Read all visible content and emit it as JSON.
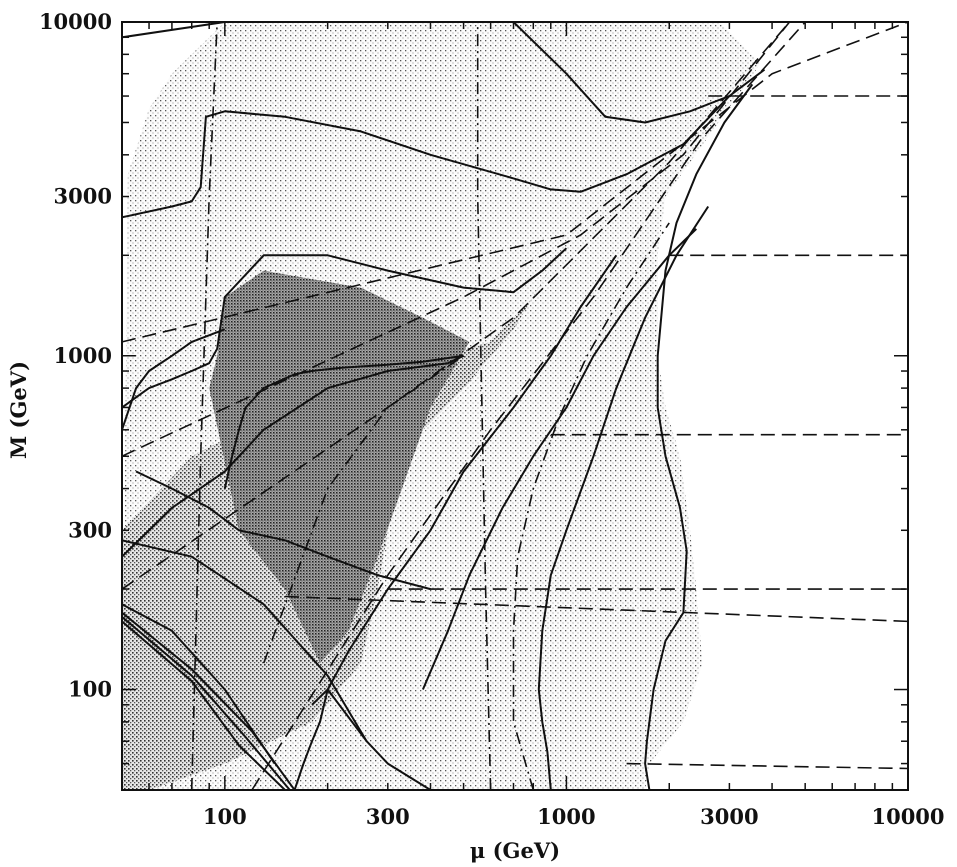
{
  "chart_data": {
    "type": "line",
    "xlabel": "μ (GeV)",
    "ylabel": "M (GeV)",
    "xscale": "log",
    "yscale": "log",
    "xlim": [
      50,
      10000
    ],
    "ylim": [
      50,
      10000
    ],
    "xticks": [
      100,
      300,
      1000,
      3000,
      10000
    ],
    "xtick_labels": [
      "100",
      "300",
      "1000",
      "3000",
      "10000"
    ],
    "yticks": [
      100,
      300,
      1000,
      3000,
      10000
    ],
    "ytick_labels": [
      "100",
      "300",
      "1000",
      "3000",
      "10000"
    ],
    "grid": false,
    "legend": "none",
    "regions": [
      {
        "shade": "light",
        "x": [
          50,
          52,
          60,
          70,
          80,
          90,
          100,
          130,
          200,
          400,
          800,
          1000,
          1200,
          1700,
          2100,
          2800,
          3700,
          1950,
          1850,
          1850,
          1950,
          2150,
          2300,
          2400,
          2500,
          2200,
          1750,
          1700,
          50
        ],
        "y": [
          50,
          3500,
          5500,
          7000,
          8000,
          9000,
          10000,
          10000,
          10000,
          10000,
          10000,
          10000,
          10000,
          10000,
          10000,
          10000,
          7500,
          3000,
          2000,
          1000,
          700,
          500,
          300,
          200,
          120,
          80,
          60,
          50,
          50
        ]
      },
      {
        "shade": "medium",
        "x": [
          50,
          80,
          150,
          300,
          600,
          800,
          1000,
          700,
          500,
          320,
          300,
          280,
          250,
          180,
          100,
          60,
          50
        ],
        "y": [
          300,
          500,
          700,
          900,
          1100,
          1500,
          2200,
          1200,
          800,
          500,
          300,
          200,
          120,
          80,
          60,
          50,
          50
        ]
      },
      {
        "shade": "dark",
        "x": [
          90,
          95,
          100,
          130,
          250,
          380,
          520,
          400,
          330,
          280,
          230,
          190,
          150,
          110,
          90
        ],
        "y": [
          800,
          1000,
          1500,
          1800,
          1600,
          1300,
          1100,
          700,
          400,
          250,
          150,
          120,
          200,
          300,
          800
        ]
      }
    ],
    "series": [
      {
        "style": "solid",
        "x": [
          50,
          100,
          200,
          400,
          700,
          1000,
          1300,
          1700,
          2300,
          3000
        ],
        "y": [
          9000,
          10000,
          10000,
          10000,
          10000,
          7000,
          5200,
          5000,
          5400,
          6000
        ]
      },
      {
        "style": "solid",
        "x": [
          50,
          70,
          80,
          85,
          88,
          100,
          150,
          250,
          400,
          700,
          900,
          1100,
          1500,
          2200,
          3000,
          3800
        ],
        "y": [
          2600,
          2800,
          2900,
          3200,
          5200,
          5400,
          5200,
          4700,
          4000,
          3400,
          3150,
          3100,
          3500,
          4300,
          6000,
          7200
        ]
      },
      {
        "style": "solid",
        "x": [
          50,
          60,
          70,
          80,
          90,
          95,
          100,
          130,
          200,
          300,
          500,
          700,
          850,
          1000
        ],
        "y": [
          700,
          800,
          850,
          900,
          950,
          1050,
          1500,
          2000,
          2000,
          1800,
          1600,
          1550,
          1800,
          2100
        ]
      },
      {
        "style": "solid",
        "x": [
          50,
          55,
          60,
          70,
          80,
          100
        ],
        "y": [
          600,
          800,
          900,
          1000,
          1100,
          1200
        ]
      },
      {
        "style": "solid",
        "x": [
          50,
          70,
          100,
          130,
          200,
          300,
          450,
          500
        ],
        "y": [
          250,
          350,
          450,
          600,
          800,
          900,
          950,
          1000
        ]
      },
      {
        "style": "solid",
        "x": [
          100,
          105,
          110,
          115,
          130,
          160,
          180,
          220,
          300,
          380,
          500
        ],
        "y": [
          400,
          500,
          600,
          700,
          800,
          880,
          900,
          920,
          940,
          960,
          1000
        ]
      },
      {
        "style": "solid",
        "x": [
          380,
          450,
          520,
          650,
          800,
          1000,
          1200,
          1500,
          2000,
          2400
        ],
        "y": [
          100,
          150,
          220,
          350,
          500,
          700,
          1000,
          1400,
          2000,
          2400
        ]
      },
      {
        "style": "solid",
        "x": [
          900,
          880,
          850,
          830,
          850,
          900,
          1000,
          1200,
          1400,
          1700,
          2100,
          2600
        ],
        "y": [
          50,
          65,
          80,
          100,
          150,
          220,
          300,
          500,
          800,
          1300,
          2000,
          2800
        ]
      },
      {
        "style": "solid",
        "x": [
          1750,
          1700,
          1720,
          1800,
          1950,
          2200,
          2250,
          2150,
          1950,
          1850,
          1850,
          1950,
          2100,
          2400,
          2900,
          3500
        ],
        "y": [
          50,
          60,
          70,
          100,
          140,
          170,
          260,
          350,
          500,
          700,
          1000,
          1800,
          2500,
          3500,
          5000,
          6500
        ]
      },
      {
        "style": "solid",
        "x": [
          160,
          170,
          180,
          190,
          200,
          230,
          300,
          400,
          500,
          700,
          900,
          1100,
          1400
        ],
        "y": [
          50,
          60,
          70,
          80,
          100,
          130,
          200,
          300,
          450,
          700,
          1000,
          1400,
          2000
        ]
      },
      {
        "style": "solid",
        "x": [
          180,
          200,
          260,
          300,
          400
        ],
        "y": [
          90,
          100,
          70,
          60,
          50
        ]
      },
      {
        "style": "solid",
        "x": [
          55,
          70,
          90,
          110,
          150,
          200,
          280,
          400
        ],
        "y": [
          450,
          400,
          350,
          300,
          280,
          250,
          220,
          200
        ]
      },
      {
        "style": "solid",
        "x": [
          50,
          80,
          130,
          200,
          260
        ],
        "y": [
          280,
          250,
          180,
          110,
          70
        ]
      },
      {
        "style": "solid",
        "x": [
          50,
          70,
          100,
          140
        ],
        "y": [
          180,
          150,
          100,
          60
        ]
      },
      {
        "style": "solid",
        "x": [
          50,
          80,
          120,
          160
        ],
        "y": [
          170,
          115,
          75,
          50
        ]
      },
      {
        "style": "solid",
        "x": [
          50,
          80,
          115,
          155
        ],
        "y": [
          165,
          110,
          72,
          50
        ]
      },
      {
        "style": "solid",
        "x": [
          50,
          80,
          110,
          150
        ],
        "y": [
          160,
          106,
          68,
          50
        ]
      },
      {
        "style": "dashed",
        "x": [
          50,
          1000,
          4000,
          10000
        ],
        "y": [
          1100,
          2300,
          7000,
          10000
        ]
      },
      {
        "style": "dashed",
        "x": [
          50,
          500,
          1100,
          2200,
          4500
        ],
        "y": [
          500,
          1500,
          2300,
          4000,
          10000
        ]
      },
      {
        "style": "dashed",
        "x": [
          50,
          300,
          700,
          2000,
          4500
        ],
        "y": [
          200,
          700,
          1300,
          3800,
          10000
        ]
      },
      {
        "style": "dashed",
        "x": [
          120,
          300,
          600,
          1200,
          2500,
          5000
        ],
        "y": [
          50,
          220,
          600,
          1500,
          4500,
          10000
        ]
      },
      {
        "style": "dashed",
        "x": [
          2600,
          10000
        ],
        "y": [
          6000,
          6000
        ]
      },
      {
        "style": "dashed",
        "x": [
          2000,
          10000
        ],
        "y": [
          2000,
          2000
        ]
      },
      {
        "style": "dashed",
        "x": [
          900,
          10000
        ],
        "y": [
          580,
          580
        ]
      },
      {
        "style": "dashed",
        "x": [
          300,
          10000
        ],
        "y": [
          200,
          200
        ]
      },
      {
        "style": "dashed",
        "x": [
          150,
          10000
        ],
        "y": [
          190,
          160
        ]
      },
      {
        "style": "dashed",
        "x": [
          1500,
          10000
        ],
        "y": [
          60,
          58
        ]
      },
      {
        "style": "dashdot",
        "x": [
          800,
          700,
          700,
          720,
          800,
          950,
          1150,
          1500,
          2000
        ],
        "y": [
          50,
          80,
          150,
          250,
          400,
          650,
          1000,
          1600,
          2500
        ]
      },
      {
        "style": "dashdot",
        "x": [
          600,
          580,
          550,
          550
        ],
        "y": [
          50,
          200,
          3000,
          10000
        ]
      },
      {
        "style": "dashdot",
        "x": [
          80,
          85,
          90,
          95
        ],
        "y": [
          50,
          500,
          3000,
          10000
        ]
      },
      {
        "style": "dashdot",
        "x": [
          130,
          200,
          300,
          500
        ],
        "y": [
          120,
          400,
          700,
          1000
        ]
      }
    ]
  }
}
